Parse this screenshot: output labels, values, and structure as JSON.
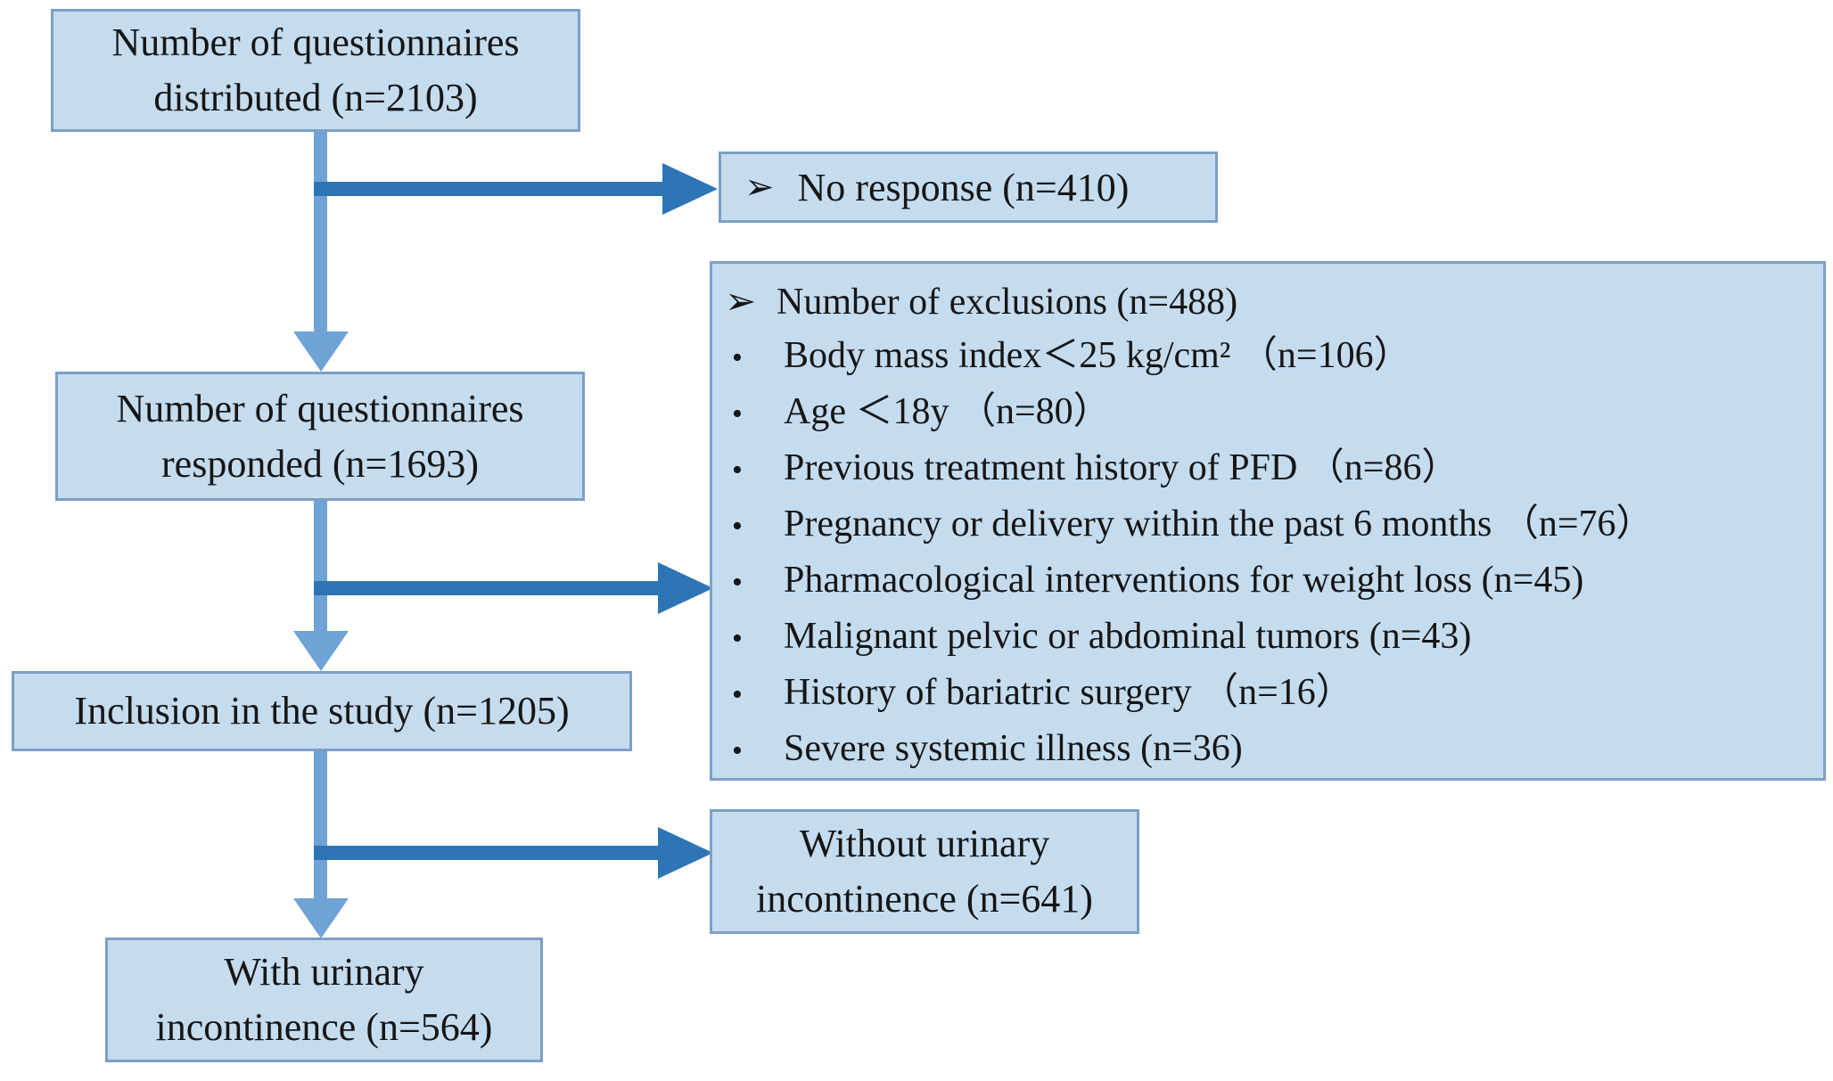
{
  "title": "Study participant flow diagram",
  "colors": {
    "background": "#ffffff",
    "box_fill": "#c5dcef",
    "box_border": "#7d9fc4",
    "arrow_vertical": "#6fa2d5",
    "arrow_horizontal": "#2e75b6",
    "text": "#161616"
  },
  "boxes": {
    "distributed": {
      "text": "Number of questionnaires\ndistributed (n=2103)"
    },
    "no_response": {
      "bullet": "➢",
      "text": "No response (n=410)"
    },
    "responded": {
      "text": "Number of questionnaires\nresponded (n=1693)"
    },
    "exclusions": {
      "items": [
        {
          "bullet": "➢",
          "text": "Number of exclusions (n=488)"
        },
        {
          "bullet": "•",
          "text": "Body mass index＜25 kg/cm² （n=106）"
        },
        {
          "bullet": "•",
          "text": "Age ＜18y （n=80）"
        },
        {
          "bullet": "•",
          "text": "Previous treatment history of PFD （n=86）"
        },
        {
          "bullet": "•",
          "text": "Pregnancy or delivery within the past 6 months （n=76）"
        },
        {
          "bullet": "•",
          "text": "Pharmacological interventions for weight loss (n=45)"
        },
        {
          "bullet": "•",
          "text": "Malignant pelvic or abdominal tumors (n=43)"
        },
        {
          "bullet": "•",
          "text": "History of bariatric surgery （n=16）"
        },
        {
          "bullet": "•",
          "text": "Severe systemic illness (n=36)"
        }
      ]
    },
    "inclusion": {
      "text": "Inclusion in the study (n=1205)"
    },
    "without_ui": {
      "text": "Without urinary\nincontinence (n=641)"
    },
    "with_ui": {
      "text": "With urinary\nincontinence (n=564)"
    }
  }
}
